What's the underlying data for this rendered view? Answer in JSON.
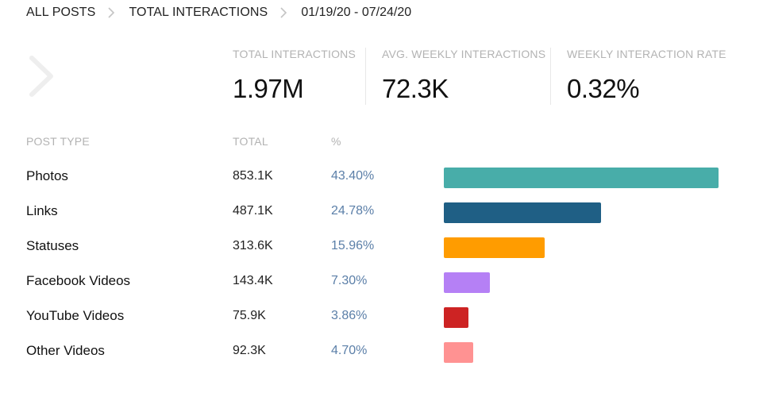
{
  "breadcrumb": {
    "items": [
      "ALL POSTS",
      "TOTAL INTERACTIONS"
    ],
    "date_range": "01/19/20 - 07/24/20"
  },
  "stats": [
    {
      "label": "TOTAL INTERACTIONS",
      "value": "1.97M"
    },
    {
      "label": "AVG. WEEKLY INTERACTIONS",
      "value": "72.3K"
    },
    {
      "label": "WEEKLY INTERACTION RATE",
      "value": "0.32%"
    }
  ],
  "table": {
    "headers": {
      "type": "POST TYPE",
      "total": "TOTAL",
      "pct": "%"
    },
    "rows": [
      {
        "type": "Photos",
        "total": "853.1K",
        "pct": "43.40%",
        "share": 43.4,
        "color": "#48ada9"
      },
      {
        "type": "Links",
        "total": "487.1K",
        "pct": "24.78%",
        "share": 24.78,
        "color": "#1f5f85"
      },
      {
        "type": "Statuses",
        "total": "313.6K",
        "pct": "15.96%",
        "share": 15.96,
        "color": "#ff9c00"
      },
      {
        "type": "Facebook Videos",
        "total": "143.4K",
        "pct": "7.30%",
        "share": 7.3,
        "color": "#b580f5"
      },
      {
        "type": "YouTube Videos",
        "total": "75.9K",
        "pct": "3.86%",
        "share": 3.86,
        "color": "#cd2323"
      },
      {
        "type": "Other Videos",
        "total": "92.3K",
        "pct": "4.70%",
        "share": 4.7,
        "color": "#ff9292"
      }
    ]
  },
  "icons": {
    "breadcrumb_separator": "chevron-right-icon",
    "back": "chevron-right-icon"
  }
}
